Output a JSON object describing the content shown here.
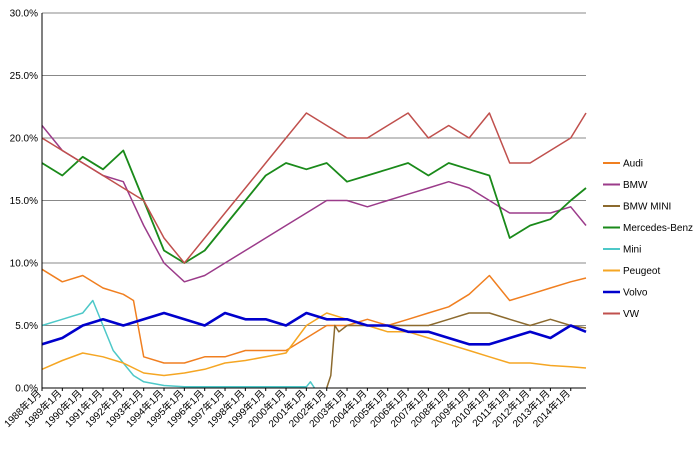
{
  "chart_data": {
    "type": "line",
    "title": "",
    "xlabel": "",
    "ylabel": "",
    "ylim": [
      0,
      0.3
    ],
    "y_ticks": [
      0,
      0.05,
      0.1,
      0.15,
      0.2,
      0.25,
      0.3
    ],
    "y_tick_labels": [
      "0.0%",
      "5.0%",
      "10.0%",
      "15.0%",
      "20.0%",
      "25.0%",
      "30.0%"
    ],
    "x_range": [
      1988.0,
      2014.75
    ],
    "x_ticks": [
      1988,
      1989,
      1990,
      1991,
      1992,
      1993,
      1994,
      1995,
      1996,
      1997,
      1998,
      1999,
      2000,
      2001,
      2002,
      2003,
      2004,
      2005,
      2006,
      2007,
      2008,
      2009,
      2010,
      2011,
      2012,
      2013,
      2014
    ],
    "x_tick_labels": [
      "1988年1月",
      "1989年1月",
      "1990年1月",
      "1991年1月",
      "1992年1月",
      "1993年1月",
      "1994年1月",
      "1995年1月",
      "1996年1月",
      "1997年1月",
      "1998年1月",
      "1999年1月",
      "2000年1月",
      "2001年1月",
      "2002年1月",
      "2003年1月",
      "2004年1月",
      "2005年1月",
      "2006年1月",
      "2007年1月",
      "2008年1月",
      "2009年1月",
      "2010年1月",
      "2011年1月",
      "2012年1月",
      "2013年1月",
      "2014年1月"
    ],
    "grid": "horizontal",
    "legend_position": "right",
    "series": [
      {
        "name": "Audi",
        "color": "#f07f20",
        "x": [
          1988.0,
          1989.0,
          1990.0,
          1991.0,
          1992.0,
          1992.5,
          1993.0,
          1994.0,
          1995.0,
          1996.0,
          1997.0,
          1998.0,
          1999.0,
          2000.0,
          2001.0,
          2002.0,
          2003.0,
          2004.0,
          2005.0,
          2006.0,
          2007.0,
          2008.0,
          2009.0,
          2010.0,
          2011.0,
          2012.0,
          2013.0,
          2014.0,
          2014.75
        ],
        "y": [
          0.095,
          0.085,
          0.09,
          0.08,
          0.075,
          0.07,
          0.025,
          0.02,
          0.02,
          0.025,
          0.025,
          0.03,
          0.03,
          0.03,
          0.04,
          0.05,
          0.05,
          0.055,
          0.05,
          0.055,
          0.06,
          0.065,
          0.075,
          0.09,
          0.07,
          0.075,
          0.08,
          0.085,
          0.088
        ]
      },
      {
        "name": "BMW",
        "color": "#9b3b8a",
        "x": [
          1988.0,
          1989.0,
          1990.0,
          1991.0,
          1992.0,
          1993.0,
          1994.0,
          1995.0,
          1996.0,
          1997.0,
          1998.0,
          1999.0,
          2000.0,
          2001.0,
          2002.0,
          2003.0,
          2004.0,
          2005.0,
          2006.0,
          2007.0,
          2008.0,
          2009.0,
          2010.0,
          2011.0,
          2012.0,
          2013.0,
          2014.0,
          2014.75
        ],
        "y": [
          0.21,
          0.19,
          0.18,
          0.17,
          0.165,
          0.13,
          0.1,
          0.085,
          0.09,
          0.1,
          0.11,
          0.12,
          0.13,
          0.14,
          0.15,
          0.15,
          0.145,
          0.15,
          0.155,
          0.16,
          0.165,
          0.16,
          0.15,
          0.14,
          0.14,
          0.14,
          0.145,
          0.13
        ]
      },
      {
        "name": "BMW MINI",
        "color": "#8c6a2e",
        "x": [
          2002.0,
          2002.2,
          2002.4,
          2002.6,
          2003.0,
          2004.0,
          2005.0,
          2006.0,
          2007.0,
          2008.0,
          2009.0,
          2010.0,
          2011.0,
          2012.0,
          2013.0,
          2014.0,
          2014.75
        ],
        "y": [
          0.0,
          0.01,
          0.05,
          0.045,
          0.05,
          0.05,
          0.05,
          0.05,
          0.05,
          0.055,
          0.06,
          0.06,
          0.055,
          0.05,
          0.055,
          0.05,
          0.048
        ]
      },
      {
        "name": "Mercedes-Benz",
        "color": "#1a8a1a",
        "x": [
          1988.0,
          1989.0,
          1990.0,
          1991.0,
          1992.0,
          1993.0,
          1994.0,
          1995.0,
          1996.0,
          1997.0,
          1998.0,
          1999.0,
          2000.0,
          2001.0,
          2002.0,
          2003.0,
          2004.0,
          2005.0,
          2006.0,
          2007.0,
          2008.0,
          2009.0,
          2010.0,
          2011.0,
          2012.0,
          2013.0,
          2014.0,
          2014.75
        ],
        "y": [
          0.18,
          0.17,
          0.185,
          0.175,
          0.19,
          0.15,
          0.11,
          0.1,
          0.11,
          0.13,
          0.15,
          0.17,
          0.18,
          0.175,
          0.18,
          0.165,
          0.17,
          0.175,
          0.18,
          0.17,
          0.18,
          0.175,
          0.17,
          0.12,
          0.13,
          0.135,
          0.15,
          0.16
        ]
      },
      {
        "name": "Mini",
        "color": "#4dc8c8",
        "x": [
          1988.0,
          1989.0,
          1990.0,
          1990.5,
          1991.0,
          1991.5,
          1992.0,
          1992.5,
          1993.0,
          1994.0,
          1995.0,
          1996.0,
          1997.0,
          1998.0,
          1999.0,
          2000.0,
          2001.0,
          2001.2,
          2001.4
        ],
        "y": [
          0.05,
          0.055,
          0.06,
          0.07,
          0.05,
          0.03,
          0.02,
          0.01,
          0.005,
          0.002,
          0.001,
          0.001,
          0.001,
          0.001,
          0.001,
          0.001,
          0.001,
          0.005,
          0.0
        ]
      },
      {
        "name": "Peugeot",
        "color": "#f5a623",
        "x": [
          1988.0,
          1989.0,
          1990.0,
          1991.0,
          1992.0,
          1993.0,
          1994.0,
          1995.0,
          1996.0,
          1997.0,
          1998.0,
          1999.0,
          2000.0,
          2001.0,
          2002.0,
          2003.0,
          2004.0,
          2005.0,
          2006.0,
          2007.0,
          2008.0,
          2009.0,
          2010.0,
          2011.0,
          2012.0,
          2013.0,
          2014.0,
          2014.75
        ],
        "y": [
          0.015,
          0.022,
          0.028,
          0.025,
          0.02,
          0.012,
          0.01,
          0.012,
          0.015,
          0.02,
          0.022,
          0.025,
          0.028,
          0.05,
          0.06,
          0.055,
          0.05,
          0.045,
          0.045,
          0.04,
          0.035,
          0.03,
          0.025,
          0.02,
          0.02,
          0.018,
          0.017,
          0.016
        ]
      },
      {
        "name": "Volvo",
        "color": "#0000cc",
        "x": [
          1988.0,
          1989.0,
          1990.0,
          1991.0,
          1992.0,
          1993.0,
          1994.0,
          1995.0,
          1996.0,
          1997.0,
          1998.0,
          1999.0,
          2000.0,
          2001.0,
          2002.0,
          2003.0,
          2004.0,
          2005.0,
          2006.0,
          2007.0,
          2008.0,
          2009.0,
          2010.0,
          2011.0,
          2012.0,
          2013.0,
          2014.0,
          2014.75
        ],
        "y": [
          0.035,
          0.04,
          0.05,
          0.055,
          0.05,
          0.055,
          0.06,
          0.055,
          0.05,
          0.06,
          0.055,
          0.055,
          0.05,
          0.06,
          0.055,
          0.055,
          0.05,
          0.05,
          0.045,
          0.045,
          0.04,
          0.035,
          0.035,
          0.04,
          0.045,
          0.04,
          0.05,
          0.045
        ]
      },
      {
        "name": "VW",
        "color": "#c0504d",
        "x": [
          1988.0,
          1989.0,
          1990.0,
          1991.0,
          1992.0,
          1993.0,
          1994.0,
          1995.0,
          1996.0,
          1997.0,
          1998.0,
          1999.0,
          2000.0,
          2001.0,
          2002.0,
          2003.0,
          2004.0,
          2005.0,
          2006.0,
          2007.0,
          2008.0,
          2009.0,
          2010.0,
          2011.0,
          2012.0,
          2013.0,
          2014.0,
          2014.75
        ],
        "y": [
          0.2,
          0.19,
          0.18,
          0.17,
          0.16,
          0.15,
          0.12,
          0.1,
          0.12,
          0.14,
          0.16,
          0.18,
          0.2,
          0.22,
          0.21,
          0.2,
          0.2,
          0.21,
          0.22,
          0.2,
          0.21,
          0.2,
          0.22,
          0.18,
          0.18,
          0.19,
          0.2,
          0.22
        ]
      }
    ]
  }
}
